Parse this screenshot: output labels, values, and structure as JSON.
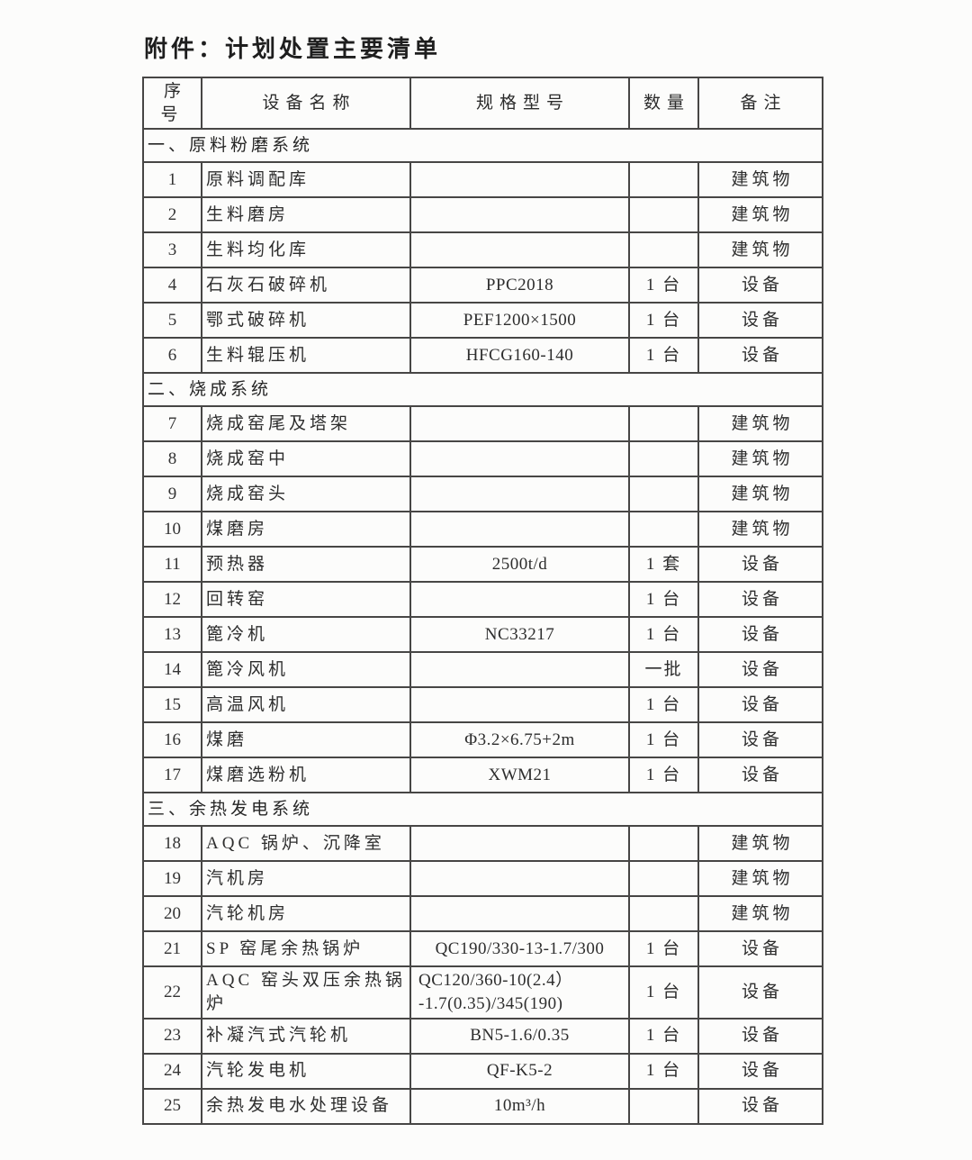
{
  "document": {
    "title": "附件：计划处置主要清单"
  },
  "table": {
    "headers": [
      "序号",
      "设备名称",
      "规格型号",
      "数量",
      "备注"
    ],
    "sections": [
      {
        "label": "一、原料粉磨系统",
        "rows": [
          {
            "no": "1",
            "name": "原料调配库",
            "spec": "",
            "qty": "",
            "note": "建筑物"
          },
          {
            "no": "2",
            "name": "生料磨房",
            "spec": "",
            "qty": "",
            "note": "建筑物"
          },
          {
            "no": "3",
            "name": "生料均化库",
            "spec": "",
            "qty": "",
            "note": "建筑物"
          },
          {
            "no": "4",
            "name": "石灰石破碎机",
            "spec": "PPC2018",
            "qty": "1 台",
            "note": "设备"
          },
          {
            "no": "5",
            "name": "鄂式破碎机",
            "spec": "PEF1200×1500",
            "qty": "1 台",
            "note": "设备"
          },
          {
            "no": "6",
            "name": "生料辊压机",
            "spec": "HFCG160-140",
            "qty": "1 台",
            "note": "设备"
          }
        ]
      },
      {
        "label": "二、烧成系统",
        "rows": [
          {
            "no": "7",
            "name": "烧成窑尾及塔架",
            "spec": "",
            "qty": "",
            "note": "建筑物"
          },
          {
            "no": "8",
            "name": "烧成窑中",
            "spec": "",
            "qty": "",
            "note": "建筑物"
          },
          {
            "no": "9",
            "name": "烧成窑头",
            "spec": "",
            "qty": "",
            "note": "建筑物"
          },
          {
            "no": "10",
            "name": "煤磨房",
            "spec": "",
            "qty": "",
            "note": "建筑物"
          },
          {
            "no": "11",
            "name": "预热器",
            "spec": "2500t/d",
            "qty": "1 套",
            "note": "设备"
          },
          {
            "no": "12",
            "name": "回转窑",
            "spec": "",
            "qty": "1 台",
            "note": "设备"
          },
          {
            "no": "13",
            "name": "篦冷机",
            "spec": "NC33217",
            "qty": "1 台",
            "note": "设备"
          },
          {
            "no": "14",
            "name": "篦冷风机",
            "spec": "",
            "qty": "一批",
            "note": "设备"
          },
          {
            "no": "15",
            "name": "高温风机",
            "spec": "",
            "qty": "1 台",
            "note": "设备"
          },
          {
            "no": "16",
            "name": "煤磨",
            "spec": "Φ3.2×6.75+2m",
            "qty": "1 台",
            "note": "设备"
          },
          {
            "no": "17",
            "name": "煤磨选粉机",
            "spec": "XWM21",
            "qty": "1 台",
            "note": "设备"
          }
        ]
      },
      {
        "label": "三、余热发电系统",
        "rows": [
          {
            "no": "18",
            "name": "AQC 锅炉、沉降室",
            "spec": "",
            "qty": "",
            "note": "建筑物"
          },
          {
            "no": "19",
            "name": "汽机房",
            "spec": "",
            "qty": "",
            "note": "建筑物"
          },
          {
            "no": "20",
            "name": "汽轮机房",
            "spec": "",
            "qty": "",
            "note": "建筑物"
          },
          {
            "no": "21",
            "name": "SP 窑尾余热锅炉",
            "spec": "QC190/330-13-1.7/300",
            "qty": "1 台",
            "note": "设备"
          },
          {
            "no": "22",
            "name": "AQC 窑头双压余热锅炉",
            "spec": "QC120/360-10(2.4）\n-1.7(0.35)/345(190)",
            "qty": "1 台",
            "note": "设备"
          },
          {
            "no": "23",
            "name": "补凝汽式汽轮机",
            "spec": "BN5-1.6/0.35",
            "qty": "1 台",
            "note": "设备"
          },
          {
            "no": "24",
            "name": "汽轮发电机",
            "spec": "QF-K5-2",
            "qty": "1 台",
            "note": "设备"
          },
          {
            "no": "25",
            "name": "余热发电水处理设备",
            "spec": "10m³/h",
            "qty": "",
            "note": "设备"
          }
        ]
      }
    ]
  }
}
